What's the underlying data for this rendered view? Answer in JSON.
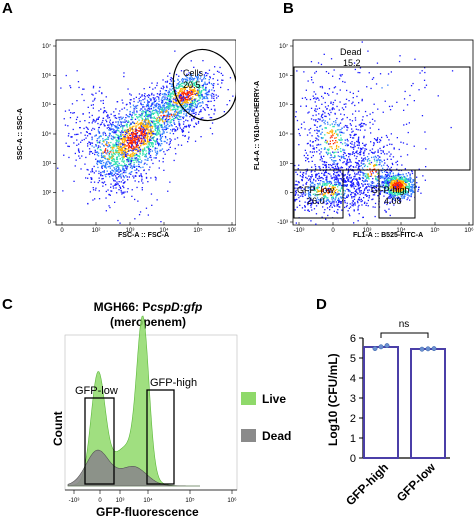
{
  "panels": {
    "a": "A",
    "b": "B",
    "c": "C",
    "d": "D"
  },
  "chart_data": [
    {
      "panel": "A",
      "type": "scatter",
      "xlabel": "FSC-A :: FSC-A",
      "ylabel": "SSC-A :: SSC-A",
      "x_scale": "log",
      "y_scale": "log",
      "x_ticks": [
        "0",
        "10²",
        "10³",
        "10⁴",
        "10⁵",
        "10⁶"
      ],
      "y_ticks": [
        "0",
        "10²",
        "10³",
        "10⁴",
        "10⁵",
        "10⁶",
        "10⁷"
      ],
      "gates": [
        {
          "name": "Cells",
          "value": "20.5",
          "shape": "ellipse"
        }
      ]
    },
    {
      "panel": "B",
      "type": "scatter",
      "xlabel": "FL1-A :: B525-FITC-A",
      "ylabel": "FL4-A :: Y610-mCHERRY-A",
      "x_ticks": [
        "-10³",
        "0",
        "10³",
        "10⁴",
        "10⁵",
        "10⁶"
      ],
      "y_ticks": [
        "-10³",
        "0",
        "10³",
        "10⁴",
        "10⁵",
        "10⁶",
        "10⁷"
      ],
      "gates": [
        {
          "name": "Dead",
          "value": "15.2"
        },
        {
          "name": "GFP_low",
          "value": "26.0"
        },
        {
          "name": "GFP-high",
          "value": "4.08"
        }
      ]
    },
    {
      "panel": "C",
      "type": "area",
      "title_line1_prefix": "MGH66: P",
      "title_line1_italic": "cspD:gfp",
      "title_line2": "(meropenem)",
      "xlabel": "GFP-fluorescence",
      "ylabel": "Count",
      "x_ticks": [
        "-10³",
        "0",
        "10³",
        "10⁴",
        "10⁵",
        "10⁶"
      ],
      "series": [
        {
          "name": "Live",
          "color": "#8fd96a"
        },
        {
          "name": "Dead",
          "color": "#8a8a8a"
        }
      ],
      "gates": [
        "GFP-low",
        "GFP-high"
      ]
    },
    {
      "panel": "D",
      "type": "bar",
      "categories": [
        "GFP-high",
        "GFP-low"
      ],
      "values": [
        5.55,
        5.45
      ],
      "points": [
        [
          5.47,
          5.56,
          5.62
        ],
        [
          5.44,
          5.46,
          5.47
        ]
      ],
      "ylabel": "Log10 (CFU/mL)",
      "ylim": [
        0,
        6
      ],
      "y_ticks": [
        "0",
        "1",
        "2",
        "3",
        "4",
        "5",
        "6"
      ],
      "annotation": "ns",
      "bar_color": "#4b3fa8",
      "point_color": "#6a8fd0"
    }
  ]
}
